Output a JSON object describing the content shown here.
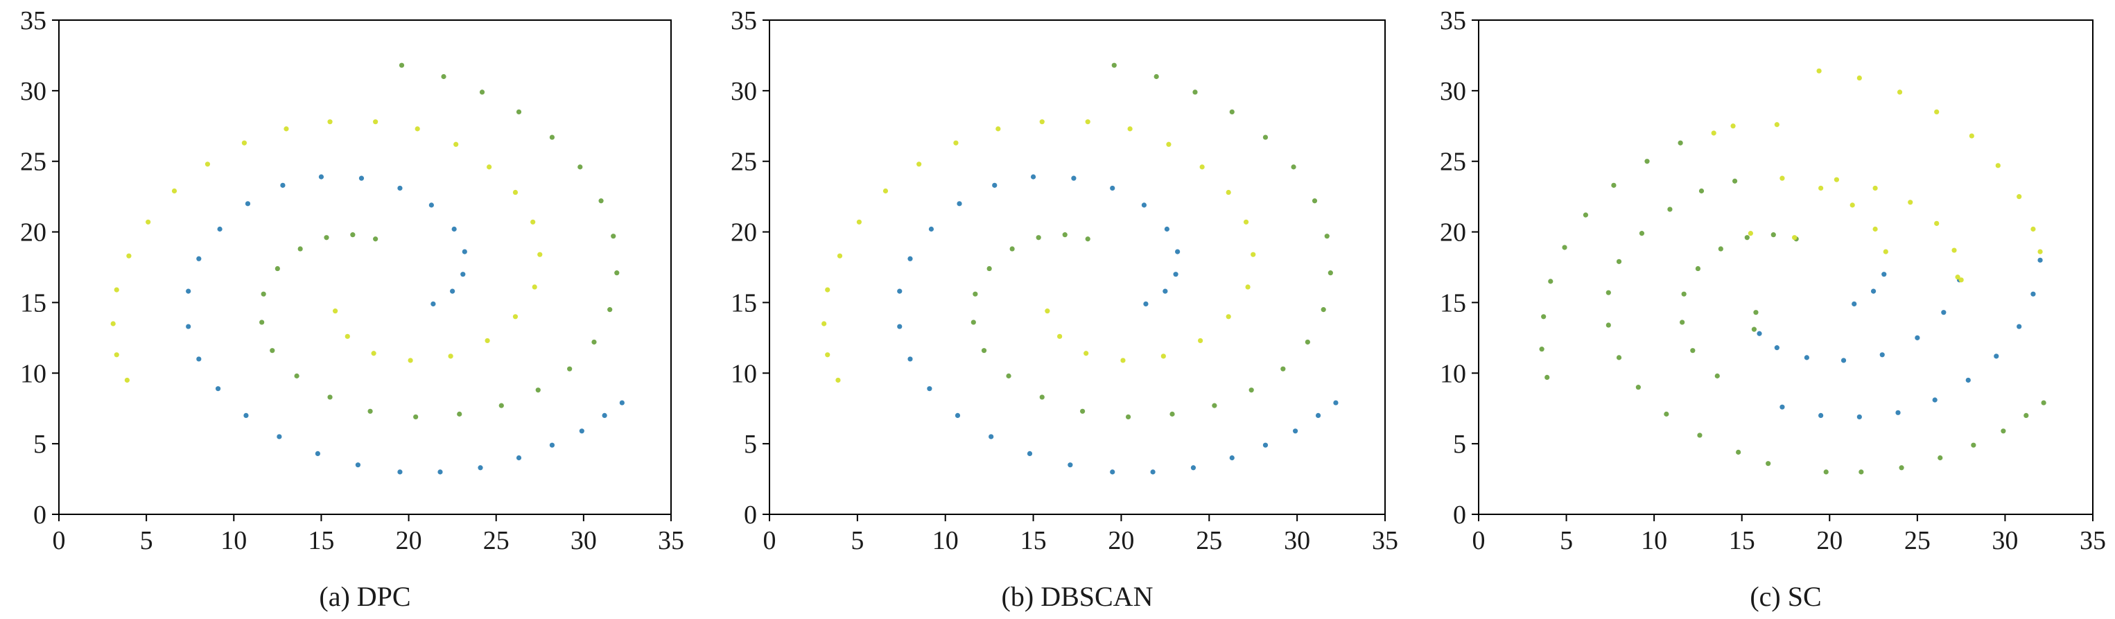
{
  "chart_data": [
    {
      "type": "scatter",
      "caption": "(a) DPC",
      "xlim": [
        0,
        35
      ],
      "ylim": [
        0,
        35
      ],
      "xticks": [
        0,
        5,
        10,
        15,
        20,
        25,
        30,
        35
      ],
      "yticks": [
        0,
        5,
        10,
        15,
        20,
        25,
        30,
        35
      ],
      "grid": false,
      "series": [
        {
          "color": "#3a86b8",
          "x": [
            21.4,
            22.5,
            23.1,
            23.2,
            22.6,
            21.3,
            19.5,
            17.3,
            15.0,
            12.8,
            10.8,
            9.2,
            8.0,
            7.4,
            7.4,
            8.0,
            9.1,
            10.7,
            12.6,
            14.8,
            17.1,
            19.5,
            21.8,
            24.1,
            26.3,
            28.2,
            29.9,
            31.2,
            32.2
          ],
          "y": [
            14.9,
            15.8,
            17.0,
            18.6,
            20.2,
            21.9,
            23.1,
            23.8,
            23.9,
            23.3,
            22.0,
            20.2,
            18.1,
            15.8,
            13.3,
            11.0,
            8.9,
            7.0,
            5.5,
            4.3,
            3.5,
            3.0,
            3.0,
            3.3,
            4.0,
            4.9,
            5.9,
            7.0,
            7.9
          ]
        },
        {
          "color": "#74a84d",
          "x": [
            18.1,
            16.8,
            15.3,
            13.8,
            12.5,
            11.7,
            11.6,
            12.2,
            13.6,
            15.5,
            17.8,
            20.4,
            22.9,
            25.3,
            27.4,
            29.2,
            30.6,
            31.5,
            31.9,
            31.7,
            31.0,
            29.8,
            28.2,
            26.3,
            24.2,
            22.0,
            19.6
          ],
          "y": [
            19.5,
            19.8,
            19.6,
            18.8,
            17.4,
            15.6,
            13.6,
            11.6,
            9.8,
            8.3,
            7.3,
            6.9,
            7.1,
            7.7,
            8.8,
            10.3,
            12.2,
            14.5,
            17.1,
            19.7,
            22.2,
            24.6,
            26.7,
            28.5,
            29.9,
            31.0,
            31.8
          ]
        },
        {
          "color": "#d7e23a",
          "x": [
            15.8,
            16.5,
            18.0,
            20.1,
            22.4,
            24.5,
            26.1,
            27.2,
            27.5,
            27.1,
            26.1,
            24.6,
            22.7,
            20.5,
            18.1,
            15.5,
            13.0,
            10.6,
            8.5,
            6.6,
            5.1,
            4.0,
            3.3,
            3.1,
            3.3,
            3.9
          ],
          "y": [
            14.4,
            12.6,
            11.4,
            10.9,
            11.2,
            12.3,
            14.0,
            16.1,
            18.4,
            20.7,
            22.8,
            24.6,
            26.2,
            27.3,
            27.8,
            27.8,
            27.3,
            26.3,
            24.8,
            22.9,
            20.7,
            18.3,
            15.9,
            13.5,
            11.3,
            9.5
          ]
        }
      ]
    },
    {
      "type": "scatter",
      "caption": "(b) DBSCAN",
      "xlim": [
        0,
        35
      ],
      "ylim": [
        0,
        35
      ],
      "xticks": [
        0,
        5,
        10,
        15,
        20,
        25,
        30,
        35
      ],
      "yticks": [
        0,
        5,
        10,
        15,
        20,
        25,
        30,
        35
      ],
      "grid": false,
      "series": [
        {
          "color": "#3a86b8",
          "x": [
            21.4,
            22.5,
            23.1,
            23.2,
            22.6,
            21.3,
            19.5,
            17.3,
            15.0,
            12.8,
            10.8,
            9.2,
            8.0,
            7.4,
            7.4,
            8.0,
            9.1,
            10.7,
            12.6,
            14.8,
            17.1,
            19.5,
            21.8,
            24.1,
            26.3,
            28.2,
            29.9,
            31.2,
            32.2
          ],
          "y": [
            14.9,
            15.8,
            17.0,
            18.6,
            20.2,
            21.9,
            23.1,
            23.8,
            23.9,
            23.3,
            22.0,
            20.2,
            18.1,
            15.8,
            13.3,
            11.0,
            8.9,
            7.0,
            5.5,
            4.3,
            3.5,
            3.0,
            3.0,
            3.3,
            4.0,
            4.9,
            5.9,
            7.0,
            7.9
          ]
        },
        {
          "color": "#74a84d",
          "x": [
            18.1,
            16.8,
            15.3,
            13.8,
            12.5,
            11.7,
            11.6,
            12.2,
            13.6,
            15.5,
            17.8,
            20.4,
            22.9,
            25.3,
            27.4,
            29.2,
            30.6,
            31.5,
            31.9,
            31.7,
            31.0,
            29.8,
            28.2,
            26.3,
            24.2,
            22.0,
            19.6
          ],
          "y": [
            19.5,
            19.8,
            19.6,
            18.8,
            17.4,
            15.6,
            13.6,
            11.6,
            9.8,
            8.3,
            7.3,
            6.9,
            7.1,
            7.7,
            8.8,
            10.3,
            12.2,
            14.5,
            17.1,
            19.7,
            22.2,
            24.6,
            26.7,
            28.5,
            29.9,
            31.0,
            31.8
          ]
        },
        {
          "color": "#d7e23a",
          "x": [
            15.8,
            16.5,
            18.0,
            20.1,
            22.4,
            24.5,
            26.1,
            27.2,
            27.5,
            27.1,
            26.1,
            24.6,
            22.7,
            20.5,
            18.1,
            15.5,
            13.0,
            10.6,
            8.5,
            6.6,
            5.1,
            4.0,
            3.3,
            3.1,
            3.3,
            3.9
          ],
          "y": [
            14.4,
            12.6,
            11.4,
            10.9,
            11.2,
            12.3,
            14.0,
            16.1,
            18.4,
            20.7,
            22.8,
            24.6,
            26.2,
            27.3,
            27.8,
            27.8,
            27.3,
            26.3,
            24.8,
            22.9,
            20.7,
            18.3,
            15.9,
            13.5,
            11.3,
            9.5
          ]
        }
      ]
    },
    {
      "type": "scatter",
      "caption": "(c) SC",
      "xlim": [
        0,
        35
      ],
      "ylim": [
        0,
        35
      ],
      "xticks": [
        0,
        5,
        10,
        15,
        20,
        25,
        30,
        35
      ],
      "yticks": [
        0,
        5,
        10,
        15,
        20,
        25,
        30,
        35
      ],
      "grid": false,
      "series": [
        {
          "color": "#3a86b8",
          "x": [
            21.4,
            22.5,
            23.1,
            16.0,
            17.0,
            18.7,
            20.8,
            23.0,
            25.0,
            26.5,
            27.4,
            32.0,
            31.6,
            30.8,
            29.5,
            27.9,
            26.0,
            23.9,
            21.7,
            19.5,
            17.3
          ],
          "y": [
            14.9,
            15.8,
            17.0,
            12.8,
            11.8,
            11.1,
            10.9,
            11.3,
            12.5,
            14.3,
            16.6,
            18.0,
            15.6,
            13.3,
            11.2,
            9.5,
            8.1,
            7.2,
            6.9,
            7.0,
            7.6
          ]
        },
        {
          "color": "#74a84d",
          "x": [
            18.1,
            16.8,
            15.3,
            13.8,
            12.5,
            11.7,
            11.6,
            12.2,
            13.6,
            15.8,
            15.7,
            14.6,
            12.7,
            10.9,
            9.3,
            8.0,
            7.4,
            7.4,
            8.0,
            9.1,
            10.7,
            12.6,
            14.8,
            16.5,
            19.8,
            21.8,
            24.1,
            26.3,
            28.2,
            29.9,
            31.2,
            32.2,
            11.5,
            9.6,
            7.7,
            6.1,
            4.9,
            4.1,
            3.7,
            3.6,
            3.9
          ],
          "y": [
            19.5,
            19.8,
            19.6,
            18.8,
            17.4,
            15.6,
            13.6,
            11.6,
            9.8,
            14.3,
            13.1,
            23.6,
            22.9,
            21.6,
            19.9,
            17.9,
            15.7,
            13.4,
            11.1,
            9.0,
            7.1,
            5.6,
            4.4,
            3.6,
            3.0,
            3.0,
            3.3,
            4.0,
            4.9,
            5.9,
            7.0,
            7.9,
            26.3,
            25.0,
            23.3,
            21.2,
            18.9,
            16.5,
            14.0,
            11.7,
            9.7
          ]
        },
        {
          "color": "#d7e23a",
          "x": [
            23.2,
            22.6,
            21.3,
            19.5,
            17.3,
            19.4,
            21.7,
            24.0,
            26.1,
            28.1,
            29.6,
            30.8,
            31.6,
            32.0,
            15.5,
            18.0,
            20.4,
            22.6,
            24.6,
            26.1,
            27.1,
            27.5,
            27.3,
            17.0,
            14.5,
            13.4
          ],
          "y": [
            18.6,
            20.2,
            21.9,
            23.1,
            23.8,
            31.4,
            30.9,
            29.9,
            28.5,
            26.8,
            24.7,
            22.5,
            20.2,
            18.6,
            19.9,
            19.6,
            23.7,
            23.1,
            22.1,
            20.6,
            18.7,
            16.6,
            16.8,
            27.6,
            27.5,
            27.0
          ]
        }
      ]
    }
  ]
}
